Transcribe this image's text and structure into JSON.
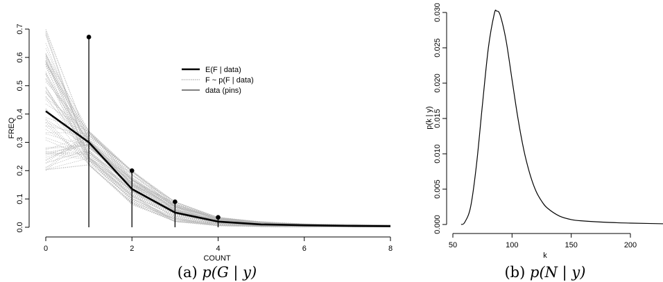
{
  "chart_data": [
    {
      "type": "line",
      "xlabel": "COUNT",
      "ylabel": "FREQ",
      "xlim": [
        0,
        8
      ],
      "ylim": [
        0,
        0.7
      ],
      "xticks": [
        0,
        2,
        4,
        6,
        8
      ],
      "yticks": [
        0.0,
        0.1,
        0.2,
        0.3,
        0.4,
        0.5,
        0.6,
        0.7
      ],
      "grid": false,
      "legend": "top-center",
      "series": [
        {
          "name": "E(F | data)",
          "style": "thick-line",
          "x": [
            0,
            1,
            2,
            3,
            4,
            5,
            6,
            7,
            8
          ],
          "y": [
            0.41,
            0.3,
            0.135,
            0.052,
            0.02,
            0.01,
            0.007,
            0.005,
            0.004
          ]
        },
        {
          "name": "F ~ p(F | data)",
          "style": "dotted-gray-samples",
          "x": [
            0,
            1,
            2,
            3,
            4,
            5,
            6,
            7,
            8
          ],
          "y_range_at_x": [
            [
              0.2,
              0.72
            ],
            [
              0.22,
              0.34
            ],
            [
              0.08,
              0.2
            ],
            [
              0.02,
              0.09
            ],
            [
              0.005,
              0.035
            ],
            [
              0.002,
              0.02
            ],
            [
              0.001,
              0.012
            ],
            [
              0.001,
              0.01
            ],
            [
              0.001,
              0.008
            ]
          ]
        },
        {
          "name": "data (pins)",
          "style": "pins",
          "x": [
            1,
            2,
            3,
            4
          ],
          "y": [
            0.672,
            0.2,
            0.09,
            0.035
          ]
        }
      ],
      "caption_text": "(a) ",
      "caption_math": "p(G | y)"
    },
    {
      "type": "line",
      "xlabel": "k",
      "ylabel": "p(k | y)",
      "xlim": [
        50,
        230
      ],
      "ylim": [
        0,
        0.03
      ],
      "xticks": [
        50,
        100,
        150,
        200
      ],
      "yticks": [
        "0.000",
        "0.005",
        "0.010",
        "0.015",
        "0.020",
        "0.025",
        "0.030"
      ],
      "grid": false,
      "series": [
        {
          "name": "",
          "x": [
            57,
            60,
            65,
            70,
            75,
            80,
            85,
            87,
            90,
            95,
            100,
            105,
            110,
            115,
            120,
            125,
            130,
            140,
            150,
            160,
            180,
            200,
            230
          ],
          "y": [
            0.0,
            0.0003,
            0.0025,
            0.0085,
            0.017,
            0.025,
            0.0298,
            0.0302,
            0.0296,
            0.026,
            0.0205,
            0.015,
            0.0105,
            0.0072,
            0.0048,
            0.0033,
            0.0023,
            0.0012,
            0.0007,
            0.0005,
            0.0003,
            0.0002,
            0.0001
          ]
        }
      ],
      "caption_text": "(b) ",
      "caption_math": "p(N | y)"
    }
  ]
}
